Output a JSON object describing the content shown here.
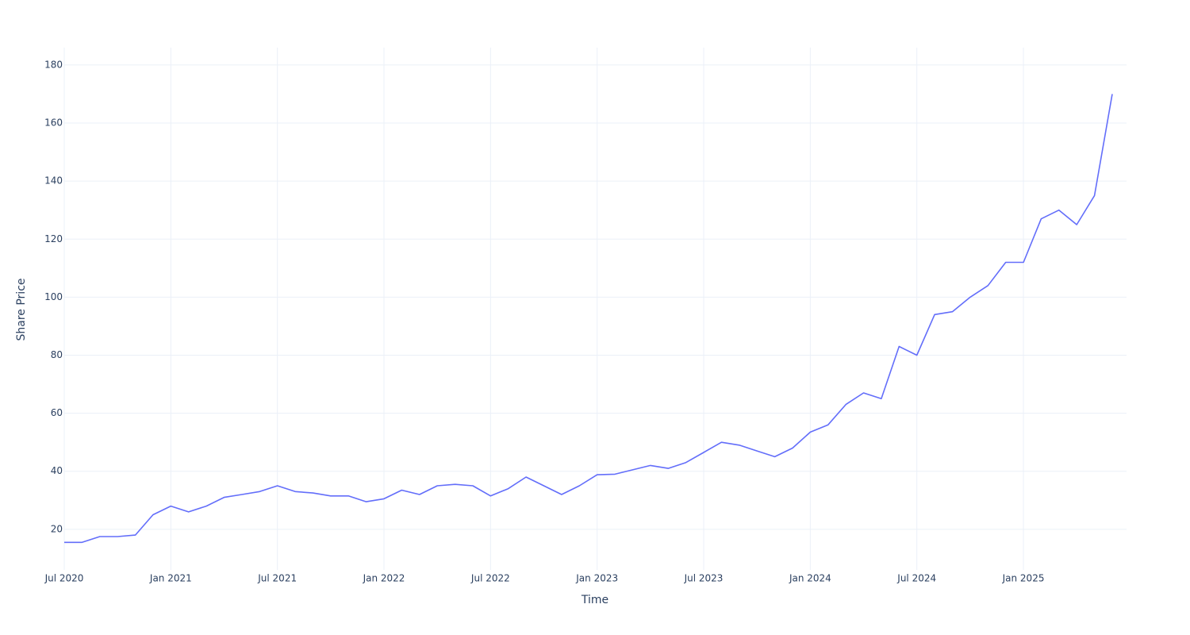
{
  "chart_data": {
    "type": "line",
    "xlabel": "Time",
    "ylabel": "Share Price",
    "x": [
      "2020-07",
      "2020-08",
      "2020-09",
      "2020-10",
      "2020-11",
      "2020-12",
      "2021-01",
      "2021-02",
      "2021-03",
      "2021-04",
      "2021-05",
      "2021-06",
      "2021-07",
      "2021-08",
      "2021-09",
      "2021-10",
      "2021-11",
      "2021-12",
      "2022-01",
      "2022-02",
      "2022-03",
      "2022-04",
      "2022-05",
      "2022-06",
      "2022-07",
      "2022-08",
      "2022-09",
      "2022-10",
      "2022-11",
      "2022-12",
      "2023-01",
      "2023-02",
      "2023-03",
      "2023-04",
      "2023-05",
      "2023-06",
      "2023-07",
      "2023-08",
      "2023-09",
      "2023-10",
      "2023-11",
      "2023-12",
      "2024-01",
      "2024-02",
      "2024-03",
      "2024-04",
      "2024-05",
      "2024-06",
      "2024-07",
      "2024-08",
      "2024-09",
      "2024-10",
      "2024-11",
      "2024-12",
      "2025-01",
      "2025-02",
      "2025-03",
      "2025-04",
      "2025-05",
      "2025-06"
    ],
    "values": [
      15.5,
      15.5,
      17.5,
      17.5,
      18,
      25,
      28,
      26,
      28,
      31,
      32,
      33,
      35,
      33,
      32.5,
      31.5,
      31.5,
      29.5,
      30.5,
      33.5,
      32,
      35,
      35.5,
      35,
      31.5,
      34,
      38,
      35,
      32,
      35,
      38.8,
      39,
      40.5,
      42,
      41,
      43,
      46.5,
      50,
      49,
      47,
      45,
      48,
      53.5,
      56,
      63,
      67,
      65,
      83,
      80,
      94,
      95,
      100,
      104,
      112,
      112,
      127,
      130,
      125,
      135,
      170
    ],
    "color": "#636efa",
    "xlim": [
      "2020-07",
      "2025-06"
    ],
    "xticks": [
      {
        "value": "2020-07",
        "label": "Jul 2020"
      },
      {
        "value": "2021-01",
        "label": "Jan 2021"
      },
      {
        "value": "2021-07",
        "label": "Jul 2021"
      },
      {
        "value": "2022-01",
        "label": "Jan 2022"
      },
      {
        "value": "2022-07",
        "label": "Jul 2022"
      },
      {
        "value": "2023-01",
        "label": "Jan 2023"
      },
      {
        "value": "2023-07",
        "label": "Jul 2023"
      },
      {
        "value": "2024-01",
        "label": "Jan 2024"
      },
      {
        "value": "2024-07",
        "label": "Jul 2024"
      },
      {
        "value": "2025-01",
        "label": "Jan 2025"
      }
    ],
    "ylim": [
      6,
      186
    ],
    "yticks": [
      20,
      40,
      60,
      80,
      100,
      120,
      140,
      160,
      180
    ],
    "grid": true
  }
}
